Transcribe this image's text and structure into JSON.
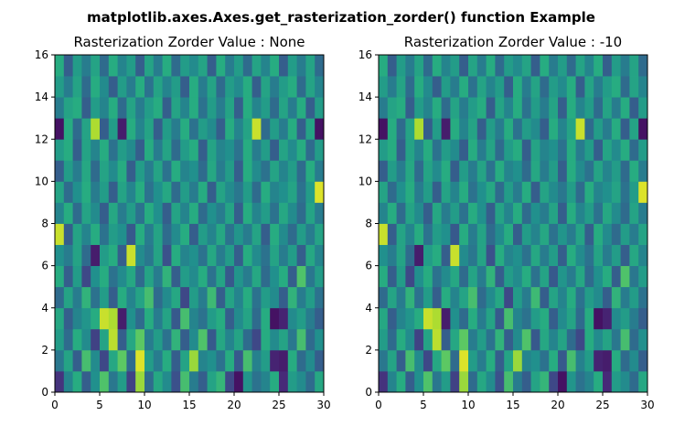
{
  "chart_data": {
    "suptitle": "matplotlib.axes.Axes.get_rasterization_zorder() function Example",
    "colormap": "viridis",
    "rows": 16,
    "cols": 30,
    "panels": [
      {
        "type": "heatmap",
        "title": "Rasterization Zorder Value : None",
        "xlim": [
          0,
          30
        ],
        "ylim": [
          0,
          16
        ],
        "xticks": [
          "0",
          "5",
          "10",
          "15",
          "20",
          "25",
          "30"
        ],
        "yticks": [
          "0",
          "2",
          "4",
          "6",
          "8",
          "10",
          "12",
          "14",
          "16"
        ]
      },
      {
        "type": "heatmap",
        "title": "Rasterization Zorder Value : -10",
        "xlim": [
          0,
          30
        ],
        "ylim": [
          0,
          16
        ],
        "xticks": [
          "0",
          "5",
          "10",
          "15",
          "20",
          "25",
          "30"
        ],
        "yticks": [
          "0",
          "2",
          "4",
          "6",
          "8",
          "10",
          "12",
          "14",
          "16"
        ]
      }
    ],
    "values": [
      [
        0.15,
        0.45,
        0.62,
        0.3,
        0.5,
        0.72,
        0.4,
        0.55,
        0.2,
        0.85,
        0.35,
        0.6,
        0.48,
        0.25,
        0.7,
        0.42,
        0.3,
        0.58,
        0.66,
        0.22,
        0.05,
        0.52,
        0.38,
        0.45,
        0.62,
        0.12,
        0.55,
        0.48,
        0.35,
        0.6
      ],
      [
        0.4,
        0.58,
        0.3,
        0.7,
        0.48,
        0.22,
        0.6,
        0.75,
        0.35,
        0.95,
        0.55,
        0.42,
        0.62,
        0.3,
        0.58,
        0.85,
        0.45,
        0.5,
        0.38,
        0.62,
        0.28,
        0.7,
        0.44,
        0.55,
        0.1,
        0.08,
        0.62,
        0.35,
        0.48,
        0.3
      ],
      [
        0.55,
        0.35,
        0.62,
        0.48,
        0.2,
        0.58,
        0.9,
        0.3,
        0.6,
        0.75,
        0.42,
        0.55,
        0.38,
        0.65,
        0.3,
        0.48,
        0.72,
        0.28,
        0.6,
        0.45,
        0.58,
        0.35,
        0.22,
        0.62,
        0.48,
        0.58,
        0.4,
        0.7,
        0.35,
        0.5
      ],
      [
        0.6,
        0.3,
        0.45,
        0.52,
        0.62,
        0.92,
        0.88,
        0.08,
        0.5,
        0.35,
        0.62,
        0.42,
        0.58,
        0.28,
        0.7,
        0.45,
        0.38,
        0.55,
        0.62,
        0.3,
        0.48,
        0.58,
        0.35,
        0.62,
        0.05,
        0.1,
        0.48,
        0.55,
        0.42,
        0.3
      ],
      [
        0.35,
        0.58,
        0.42,
        0.65,
        0.38,
        0.55,
        0.3,
        0.62,
        0.45,
        0.58,
        0.7,
        0.35,
        0.48,
        0.6,
        0.22,
        0.55,
        0.42,
        0.68,
        0.3,
        0.58,
        0.45,
        0.62,
        0.38,
        0.55,
        0.48,
        0.3,
        0.65,
        0.42,
        0.55,
        0.38
      ],
      [
        0.62,
        0.3,
        0.55,
        0.22,
        0.5,
        0.62,
        0.38,
        0.48,
        0.6,
        0.35,
        0.58,
        0.42,
        0.65,
        0.3,
        0.55,
        0.48,
        0.62,
        0.38,
        0.58,
        0.28,
        0.52,
        0.42,
        0.6,
        0.35,
        0.5,
        0.62,
        0.3,
        0.72,
        0.4,
        0.55
      ],
      [
        0.5,
        0.42,
        0.58,
        0.35,
        0.08,
        0.55,
        0.62,
        0.3,
        0.92,
        0.48,
        0.4,
        0.58,
        0.25,
        0.62,
        0.45,
        0.5,
        0.38,
        0.6,
        0.42,
        0.55,
        0.3,
        0.62,
        0.48,
        0.38,
        0.58,
        0.42,
        0.55,
        0.3,
        0.6,
        0.45
      ],
      [
        0.92,
        0.3,
        0.58,
        0.45,
        0.62,
        0.38,
        0.55,
        0.5,
        0.28,
        0.62,
        0.42,
        0.58,
        0.35,
        0.48,
        0.62,
        0.3,
        0.55,
        0.45,
        0.6,
        0.38,
        0.52,
        0.42,
        0.58,
        0.3,
        0.62,
        0.48,
        0.35,
        0.55,
        0.42,
        0.58
      ],
      [
        0.45,
        0.62,
        0.35,
        0.58,
        0.48,
        0.3,
        0.6,
        0.42,
        0.55,
        0.38,
        0.62,
        0.5,
        0.3,
        0.58,
        0.45,
        0.62,
        0.35,
        0.5,
        0.42,
        0.58,
        0.3,
        0.62,
        0.45,
        0.55,
        0.38,
        0.6,
        0.48,
        0.35,
        0.58,
        0.42
      ],
      [
        0.58,
        0.35,
        0.5,
        0.62,
        0.42,
        0.55,
        0.3,
        0.58,
        0.45,
        0.62,
        0.38,
        0.5,
        0.6,
        0.35,
        0.55,
        0.42,
        0.62,
        0.3,
        0.58,
        0.48,
        0.4,
        0.55,
        0.35,
        0.62,
        0.45,
        0.5,
        0.58,
        0.38,
        0.55,
        0.95
      ],
      [
        0.3,
        0.55,
        0.42,
        0.6,
        0.35,
        0.58,
        0.48,
        0.62,
        0.3,
        0.55,
        0.42,
        0.58,
        0.38,
        0.62,
        0.45,
        0.5,
        0.35,
        0.6,
        0.42,
        0.55,
        0.3,
        0.62,
        0.48,
        0.38,
        0.58,
        0.45,
        0.55,
        0.35,
        0.62,
        0.42
      ],
      [
        0.55,
        0.62,
        0.3,
        0.58,
        0.45,
        0.62,
        0.38,
        0.55,
        0.48,
        0.3,
        0.62,
        0.42,
        0.58,
        0.35,
        0.55,
        0.62,
        0.3,
        0.58,
        0.45,
        0.5,
        0.38,
        0.62,
        0.42,
        0.55,
        0.3,
        0.58,
        0.48,
        0.62,
        0.35,
        0.55
      ],
      [
        0.05,
        0.62,
        0.35,
        0.58,
        0.88,
        0.3,
        0.55,
        0.08,
        0.62,
        0.45,
        0.58,
        0.3,
        0.55,
        0.42,
        0.62,
        0.38,
        0.55,
        0.48,
        0.3,
        0.62,
        0.45,
        0.58,
        0.92,
        0.35,
        0.55,
        0.42,
        0.62,
        0.3,
        0.58,
        0.05
      ],
      [
        0.42,
        0.58,
        0.62,
        0.3,
        0.55,
        0.45,
        0.62,
        0.35,
        0.58,
        0.42,
        0.55,
        0.62,
        0.3,
        0.58,
        0.45,
        0.62,
        0.38,
        0.55,
        0.42,
        0.58,
        0.3,
        0.62,
        0.45,
        0.55,
        0.35,
        0.58,
        0.42,
        0.62,
        0.3,
        0.55
      ],
      [
        0.55,
        0.42,
        0.58,
        0.35,
        0.62,
        0.48,
        0.3,
        0.55,
        0.42,
        0.62,
        0.38,
        0.58,
        0.45,
        0.55,
        0.3,
        0.62,
        0.42,
        0.58,
        0.35,
        0.55,
        0.48,
        0.62,
        0.3,
        0.58,
        0.42,
        0.55,
        0.62,
        0.35,
        0.58,
        0.45
      ],
      [
        0.62,
        0.3,
        0.55,
        0.42,
        0.58,
        0.35,
        0.62,
        0.45,
        0.55,
        0.3,
        0.58,
        0.42,
        0.62,
        0.35,
        0.55,
        0.48,
        0.58,
        0.3,
        0.62,
        0.42,
        0.55,
        0.35,
        0.58,
        0.45,
        0.62,
        0.3,
        0.55,
        0.42,
        0.58,
        0.35
      ]
    ]
  }
}
